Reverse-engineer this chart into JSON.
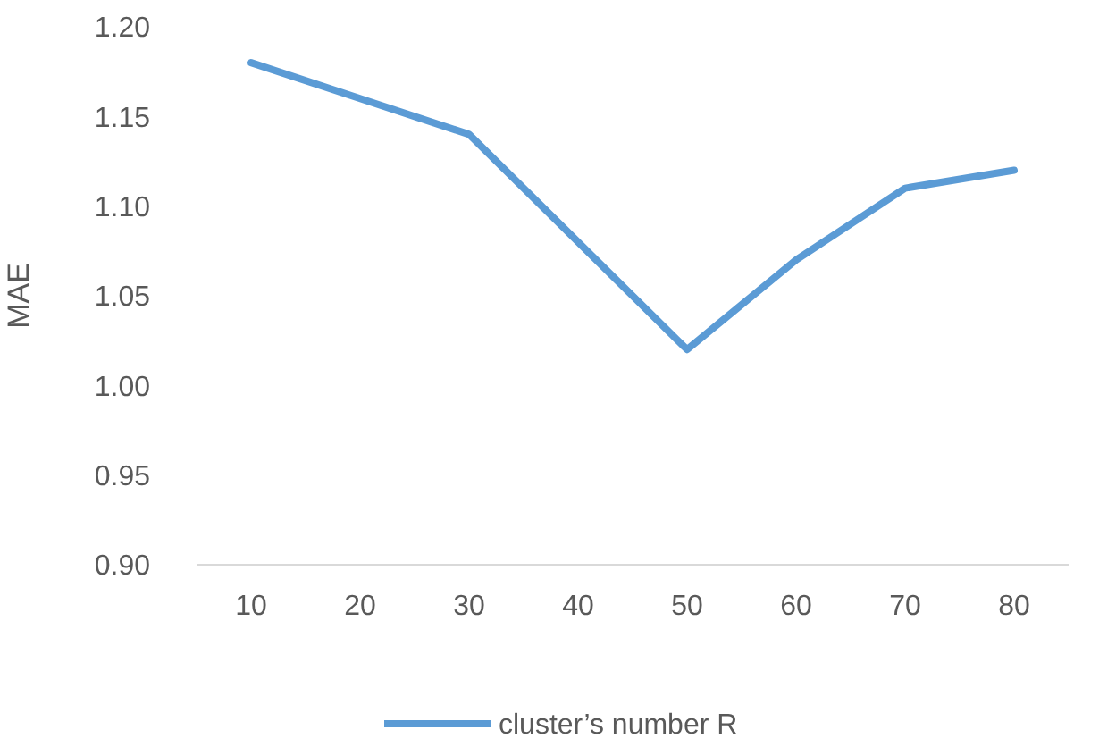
{
  "chart_data": {
    "type": "line",
    "ylabel": "MAE",
    "categories": [
      "10",
      "20",
      "30",
      "40",
      "50",
      "60",
      "70",
      "80"
    ],
    "series": [
      {
        "name": "cluster’s number R",
        "color": "#5b9bd5",
        "values": [
          1.18,
          1.16,
          1.14,
          1.08,
          1.02,
          1.07,
          1.11,
          1.12
        ]
      }
    ],
    "ylim": [
      0.9,
      1.2
    ],
    "yticks": [
      {
        "value": 0.9,
        "label": "0.90"
      },
      {
        "value": 0.95,
        "label": "0.95"
      },
      {
        "value": 1.0,
        "label": "1.00"
      },
      {
        "value": 1.05,
        "label": "1.05"
      },
      {
        "value": 1.1,
        "label": "1.10"
      },
      {
        "value": 1.15,
        "label": "1.15"
      },
      {
        "value": 1.2,
        "label": "1.20"
      }
    ],
    "grid": false,
    "legend": "bottom",
    "marker": "none",
    "line_style": "solid"
  }
}
